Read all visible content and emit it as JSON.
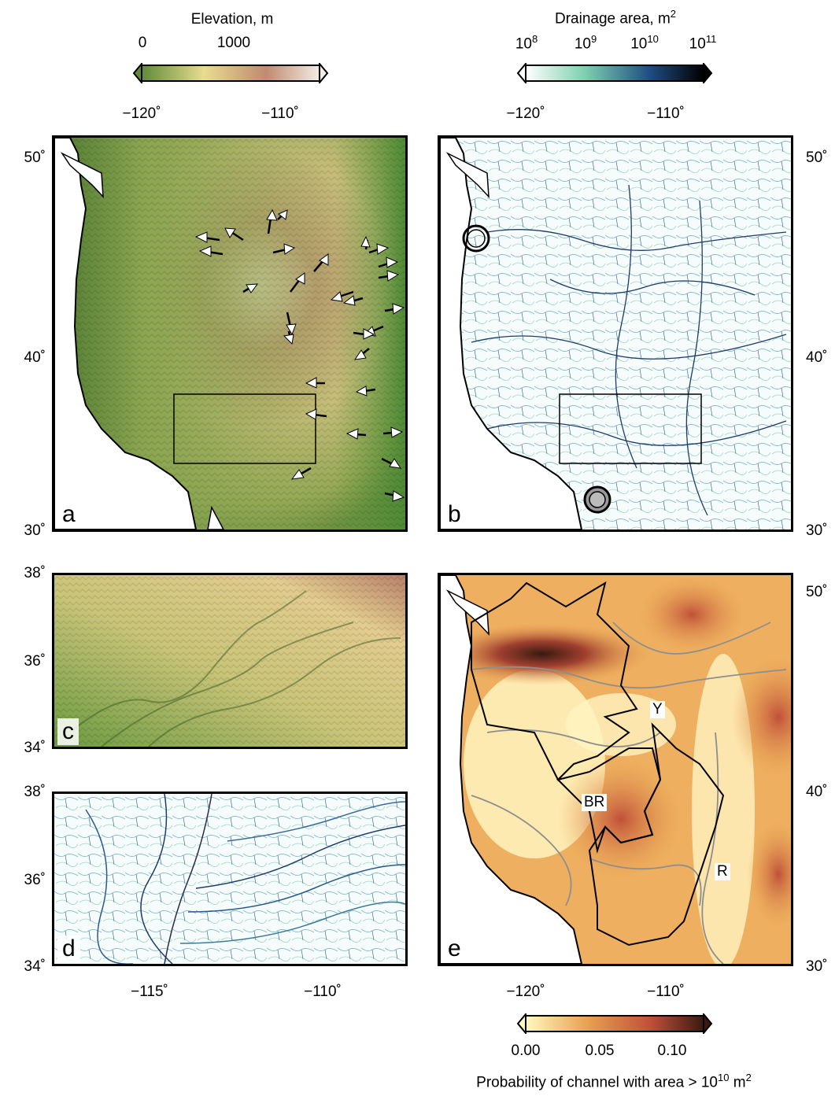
{
  "colorbars": {
    "elevation": {
      "title": "Elevation, m",
      "ticks": [
        "0",
        "1000"
      ],
      "colors": [
        "#5f8a3a",
        "#e8dc90",
        "#c08a70",
        "#f4ece4"
      ]
    },
    "drainage": {
      "title_prefix": "Drainage area, m",
      "title_sup": "2",
      "ticks": [
        {
          "base": "10",
          "exp": "8"
        },
        {
          "base": "10",
          "exp": "9"
        },
        {
          "base": "10",
          "exp": "10"
        },
        {
          "base": "10",
          "exp": "11"
        }
      ],
      "colors": [
        "#ffffff",
        "#7fd0b0",
        "#1e4c80",
        "#000000"
      ]
    },
    "probability": {
      "title_prefix": "Probability of channel with area > 10",
      "title_exp": "10",
      "title_suffix": " m",
      "title_sup": "2",
      "ticks": [
        "0.00",
        "0.05",
        "0.10"
      ],
      "colors": [
        "#fff8c0",
        "#e8a050",
        "#c0503a",
        "#3a1a10"
      ]
    }
  },
  "axes": {
    "top_lon_ticks": [
      "−120˚",
      "−110˚"
    ],
    "lat_ticks_ab": [
      "50˚",
      "40˚",
      "30˚"
    ],
    "lat_ticks_cd": [
      "38˚",
      "36˚",
      "34˚"
    ],
    "lat_ticks_e": [
      "50˚",
      "40˚",
      "30˚"
    ],
    "bottom_lon_ticks_d": [
      "−115˚",
      "−110˚"
    ],
    "bottom_lon_ticks_e": [
      "−120˚",
      "−110˚"
    ]
  },
  "panels": {
    "a": {
      "label": "a"
    },
    "b": {
      "label": "b"
    },
    "c": {
      "label": "c"
    },
    "d": {
      "label": "d"
    },
    "e": {
      "label": "e"
    }
  },
  "regions": {
    "Y": "Y",
    "BR": "BR",
    "R": "R"
  }
}
